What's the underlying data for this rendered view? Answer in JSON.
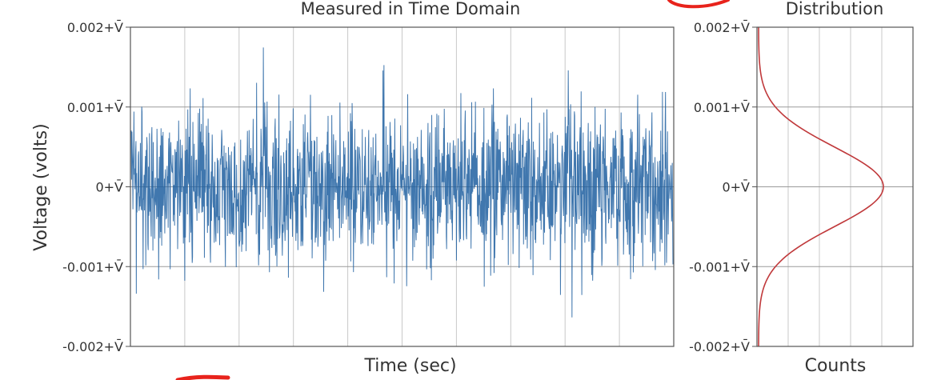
{
  "chart_data": [
    {
      "type": "line",
      "title": "Measured in Time Domain",
      "xlabel": "Time (sec)",
      "ylabel": "Voltage (volts)",
      "y_ticks": [
        {
          "value": 0.002,
          "label": "0.002+V̄"
        },
        {
          "value": 0.001,
          "label": "0.001+V̄"
        },
        {
          "value": 0,
          "label": "0+V̄"
        },
        {
          "value": -0.001,
          "label": "-0.001+V̄"
        },
        {
          "value": -0.002,
          "label": "-0.002+V̄"
        }
      ],
      "ylim": [
        -0.002,
        0.002
      ],
      "grid": true,
      "x_gridlines": 9,
      "series": [
        {
          "color": "#1f5fa0",
          "signal": "gaussian noise around mean",
          "mean": 0,
          "std_dev": 0.0005,
          "approx_extremes": [
            -0.002,
            0.0019
          ]
        }
      ]
    },
    {
      "type": "line",
      "title": "Distribution",
      "xlabel": "Counts",
      "y_ticks": [
        {
          "value": 0.002,
          "label": "0.002+V̄"
        },
        {
          "value": 0.001,
          "label": "0.001+V̄"
        },
        {
          "value": 0,
          "label": "0+V̄"
        },
        {
          "value": -0.001,
          "label": "-0.001+V̄"
        },
        {
          "value": -0.002,
          "label": "-0.002+V̄"
        }
      ],
      "ylim": [
        -0.002,
        0.002
      ],
      "grid": true,
      "x_gridlines": 4,
      "series": [
        {
          "color": "#c0393b",
          "shape": "gaussian",
          "mean": 0,
          "std_dev": 0.0005,
          "peak_fraction_of_width": 0.8
        }
      ]
    }
  ],
  "annotations": {
    "ink_color": "#e8231c"
  }
}
